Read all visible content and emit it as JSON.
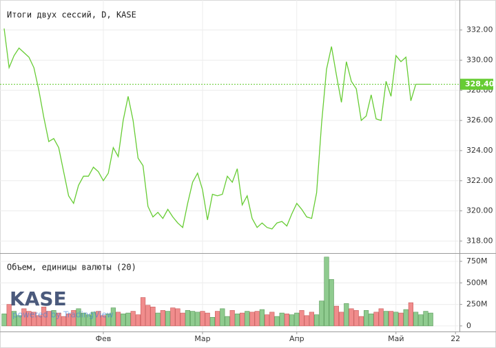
{
  "chart_data": [
    {
      "type": "line",
      "title": "Итоги двух сессий, D, KASE",
      "color": "#66cc33",
      "categories": [
        null,
        null,
        null,
        null,
        null,
        null,
        null,
        null,
        null,
        null,
        null,
        null,
        null,
        null,
        null,
        null,
        null,
        null,
        null,
        null,
        "Фев",
        null,
        null,
        null,
        null,
        null,
        null,
        null,
        null,
        null,
        null,
        null,
        null,
        null,
        null,
        null,
        null,
        null,
        null,
        null,
        "Мар",
        null,
        null,
        null,
        null,
        null,
        null,
        null,
        null,
        null,
        null,
        null,
        null,
        null,
        null,
        null,
        null,
        null,
        null,
        "Апр",
        null,
        null,
        null,
        null,
        null,
        null,
        null,
        null,
        null,
        null,
        null,
        null,
        null,
        null,
        null,
        null,
        null,
        null,
        null,
        "Май",
        null,
        null,
        null,
        null,
        null,
        null,
        null,
        null,
        null,
        null,
        null,
        "22"
      ],
      "values": [
        332.1,
        329.5,
        330.3,
        330.8,
        330.5,
        330.2,
        329.5,
        328.0,
        326.2,
        324.6,
        324.8,
        324.2,
        322.6,
        321.0,
        320.5,
        321.7,
        322.3,
        322.3,
        322.9,
        322.6,
        322.0,
        322.5,
        324.2,
        323.6,
        326.0,
        327.6,
        326.0,
        323.5,
        323.0,
        320.3,
        319.6,
        319.9,
        319.5,
        320.1,
        319.6,
        319.2,
        318.9,
        320.5,
        321.9,
        322.5,
        321.4,
        319.4,
        321.1,
        321.0,
        321.1,
        322.3,
        321.9,
        322.8,
        320.4,
        321.0,
        319.5,
        318.9,
        319.2,
        318.9,
        318.8,
        319.2,
        319.3,
        319.0,
        319.8,
        320.5,
        320.1,
        319.6,
        319.5,
        321.2,
        325.8,
        329.4,
        330.9,
        329.0,
        327.2,
        329.9,
        328.6,
        328.1,
        326.0,
        326.3,
        327.7,
        326.1,
        326.0,
        328.6,
        327.6,
        330.3,
        329.9,
        330.2,
        327.3,
        328.4,
        328.4,
        328.4,
        328.4,
        null,
        null,
        null,
        null,
        null
      ],
      "last_value": {
        "value": 328.4,
        "label": "328.40"
      },
      "ylim": [
        317.2,
        333.9
      ],
      "yticks": [
        {
          "value": 318,
          "label": "318.00"
        },
        {
          "value": 320,
          "label": "320.00"
        },
        {
          "value": 322,
          "label": "322.00"
        },
        {
          "value": 324,
          "label": "324.00"
        },
        {
          "value": 326,
          "label": "326.00"
        },
        {
          "value": 328,
          "label": "328.00"
        },
        {
          "value": 330,
          "label": "330.00"
        },
        {
          "value": 332,
          "label": "332.00"
        }
      ],
      "grid": true,
      "logo": "KASE",
      "credit": "powered by TradingView"
    },
    {
      "type": "bar",
      "title": "Объем, единицы валюты (20)",
      "up_color": "#8fcb8f",
      "down_color": "#f08c8c",
      "values": [
        140,
        250,
        170,
        120,
        200,
        170,
        160,
        120,
        220,
        170,
        180,
        150,
        110,
        140,
        180,
        200,
        150,
        130,
        160,
        170,
        120,
        140,
        210,
        160,
        140,
        150,
        170,
        130,
        330,
        240,
        220,
        150,
        180,
        170,
        210,
        200,
        150,
        180,
        170,
        160,
        170,
        150,
        100,
        170,
        200,
        110,
        180,
        140,
        150,
        170,
        160,
        170,
        190,
        130,
        160,
        110,
        150,
        140,
        130,
        150,
        180,
        120,
        160,
        130,
        290,
        800,
        540,
        230,
        160,
        260,
        200,
        180,
        110,
        180,
        140,
        160,
        200,
        170,
        170,
        160,
        150,
        190,
        270,
        160,
        130,
        170,
        150,
        null,
        null,
        null,
        null,
        null
      ],
      "ylim": [
        -65,
        830
      ],
      "yticks": [
        0,
        {
          "value": 250,
          "label": "250M"
        },
        {
          "value": 500,
          "label": "500M"
        },
        {
          "value": 750,
          "label": "750M"
        }
      ],
      "grid": true
    }
  ]
}
